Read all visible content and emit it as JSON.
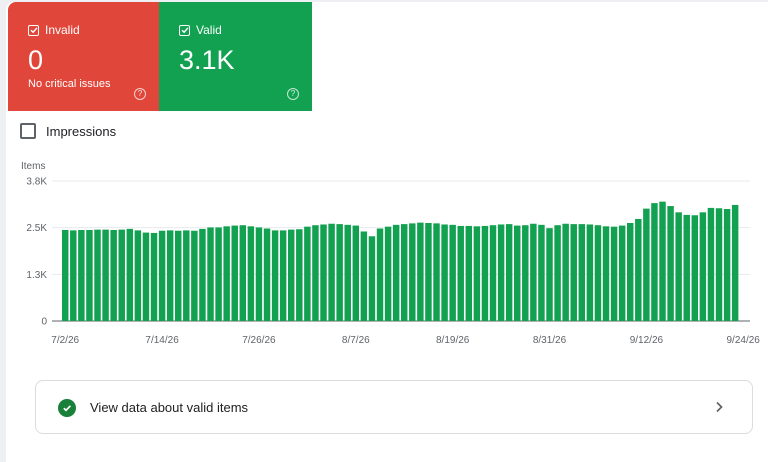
{
  "tiles": {
    "invalid": {
      "label": "Invalid",
      "count": "0",
      "subtitle": "No critical issues",
      "color": "#e0463a"
    },
    "valid": {
      "label": "Valid",
      "count": "3.1K",
      "color": "#12a150"
    }
  },
  "impressions_label": "Impressions",
  "view_link": {
    "label": "View data about valid items"
  },
  "chart_data": {
    "type": "bar",
    "ylabel": "Items",
    "ylim": [
      0,
      3800
    ],
    "y_ticks": [
      "0",
      "1.3K",
      "2.5K",
      "3.8K"
    ],
    "x_tick_labels": [
      "7/2/26",
      "7/14/26",
      "7/26/26",
      "8/7/26",
      "8/19/26",
      "8/31/26",
      "9/12/26",
      "9/24/26"
    ],
    "bar_color": "#12a150",
    "values": [
      2470,
      2460,
      2470,
      2470,
      2480,
      2480,
      2470,
      2480,
      2500,
      2460,
      2400,
      2390,
      2450,
      2460,
      2450,
      2460,
      2450,
      2500,
      2540,
      2540,
      2570,
      2590,
      2600,
      2570,
      2540,
      2510,
      2460,
      2460,
      2480,
      2490,
      2560,
      2600,
      2620,
      2640,
      2630,
      2610,
      2590,
      2430,
      2300,
      2510,
      2560,
      2610,
      2630,
      2650,
      2670,
      2660,
      2650,
      2620,
      2610,
      2580,
      2580,
      2570,
      2580,
      2600,
      2620,
      2630,
      2590,
      2600,
      2640,
      2610,
      2520,
      2600,
      2640,
      2630,
      2630,
      2620,
      2600,
      2570,
      2560,
      2590,
      2660,
      2770,
      3050,
      3200,
      3240,
      3120,
      2950,
      2880,
      2870,
      2950,
      3070,
      3060,
      3040,
      3150
    ]
  }
}
